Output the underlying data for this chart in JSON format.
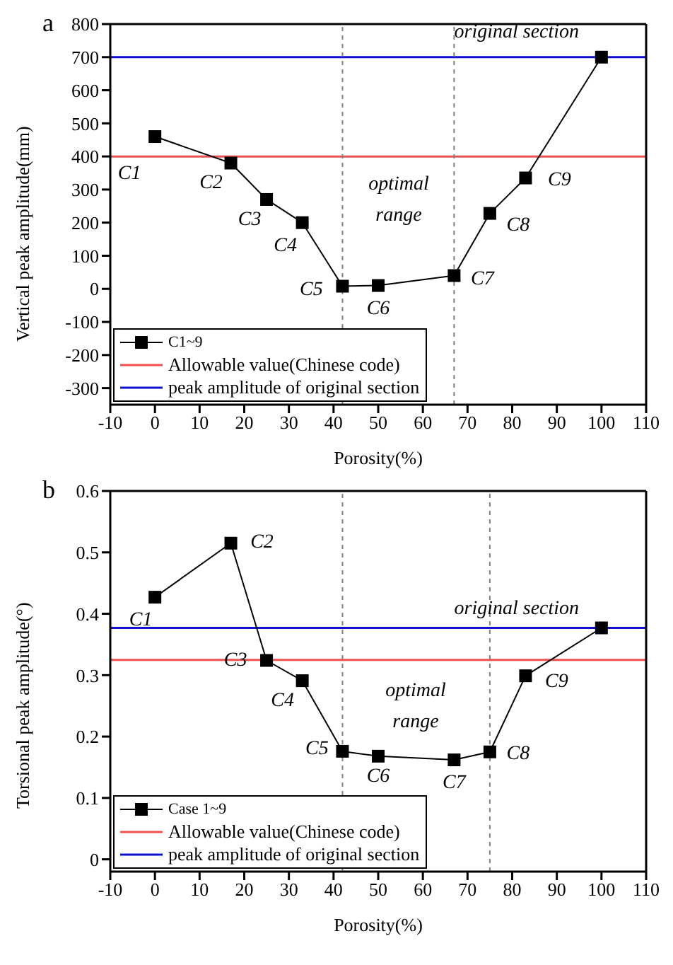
{
  "chart_data": [
    {
      "type": "line",
      "title": "a",
      "xlabel": "Porosity(%)",
      "ylabel": "Vertical peak amplitude(mm)",
      "x": [
        0,
        17,
        25,
        33,
        42,
        50,
        67,
        75,
        83,
        100
      ],
      "series": [
        {
          "name": "C1~9",
          "color": "#000000",
          "values": [
            460,
            380,
            270,
            200,
            8,
            10,
            40,
            228,
            335,
            700
          ]
        }
      ],
      "xlim": [
        -10,
        110
      ],
      "xticks": [
        -10,
        0,
        10,
        20,
        30,
        40,
        50,
        60,
        70,
        80,
        90,
        100,
        110
      ],
      "ylim": [
        -350,
        800
      ],
      "yticks": [
        -300,
        -200,
        -100,
        0,
        100,
        200,
        300,
        400,
        500,
        600,
        700,
        800
      ],
      "ref_lines": [
        {
          "axis": "y",
          "value": 400,
          "label": "Allowable value(Chinese code)",
          "color": "#f05050"
        },
        {
          "axis": "y",
          "value": 700,
          "label": "peak amplitude of original section",
          "color": "#1010d0"
        },
        {
          "axis": "x",
          "value": 42,
          "color": "#808080",
          "line_style": "dashed"
        },
        {
          "axis": "x",
          "value": 67,
          "color": "#808080",
          "line_style": "dashed"
        }
      ],
      "annotations": [
        {
          "text": "C1",
          "x": 0,
          "y": 460
        },
        {
          "text": "C2",
          "x": 17,
          "y": 380
        },
        {
          "text": "C3",
          "x": 25,
          "y": 270
        },
        {
          "text": "C4",
          "x": 33,
          "y": 200
        },
        {
          "text": "C5",
          "x": 42,
          "y": 8
        },
        {
          "text": "C6",
          "x": 50,
          "y": 10
        },
        {
          "text": "C7",
          "x": 67,
          "y": 40
        },
        {
          "text": "C8",
          "x": 75,
          "y": 228
        },
        {
          "text": "C9",
          "x": 83,
          "y": 335
        },
        {
          "text": "original section",
          "x": 100,
          "y": 700
        },
        "optimal\nrange"
      ],
      "legend": "bottom left",
      "marker": "square",
      "line_style": "solid",
      "grid": false
    },
    {
      "type": "line",
      "title": "b",
      "xlabel": "Porosity(%)",
      "ylabel": "Torsional peak amplitude(°)",
      "x": [
        0,
        17,
        25,
        33,
        42,
        50,
        67,
        75,
        83,
        100
      ],
      "series": [
        {
          "name": "Case 1~9",
          "color": "#000000",
          "values": [
            0.427,
            0.515,
            0.324,
            0.291,
            0.176,
            0.168,
            0.162,
            0.175,
            0.299,
            0.377
          ]
        }
      ],
      "xlim": [
        -10,
        110
      ],
      "xticks": [
        -10,
        0,
        10,
        20,
        30,
        40,
        50,
        60,
        70,
        80,
        90,
        100,
        110
      ],
      "ylim": [
        -0.02,
        0.6
      ],
      "yticks": [
        0,
        0.1,
        0.2,
        0.3,
        0.4,
        0.5,
        0.6
      ],
      "ref_lines": [
        {
          "axis": "y",
          "value": 0.325,
          "label": "Allowable value(Chinese code)",
          "color": "#f05050"
        },
        {
          "axis": "y",
          "value": 0.377,
          "label": "peak amplitude of original section",
          "color": "#1010d0"
        },
        {
          "axis": "x",
          "value": 42,
          "color": "#808080",
          "line_style": "dashed"
        },
        {
          "axis": "x",
          "value": 75,
          "color": "#808080",
          "line_style": "dashed"
        }
      ],
      "annotations": [
        {
          "text": "C1",
          "x": 0,
          "y": 0.427
        },
        {
          "text": "C2",
          "x": 17,
          "y": 0.515
        },
        {
          "text": "C3",
          "x": 25,
          "y": 0.324
        },
        {
          "text": "C4",
          "x": 33,
          "y": 0.291
        },
        {
          "text": "C5",
          "x": 42,
          "y": 0.176
        },
        {
          "text": "C6",
          "x": 50,
          "y": 0.168
        },
        {
          "text": "C7",
          "x": 67,
          "y": 0.162
        },
        {
          "text": "C8",
          "x": 75,
          "y": 0.175
        },
        {
          "text": "C9",
          "x": 83,
          "y": 0.299
        },
        {
          "text": "original section",
          "x": 100,
          "y": 0.377
        },
        "optimal\nrange"
      ],
      "legend": "bottom left",
      "marker": "square",
      "line_style": "solid",
      "grid": false
    }
  ]
}
